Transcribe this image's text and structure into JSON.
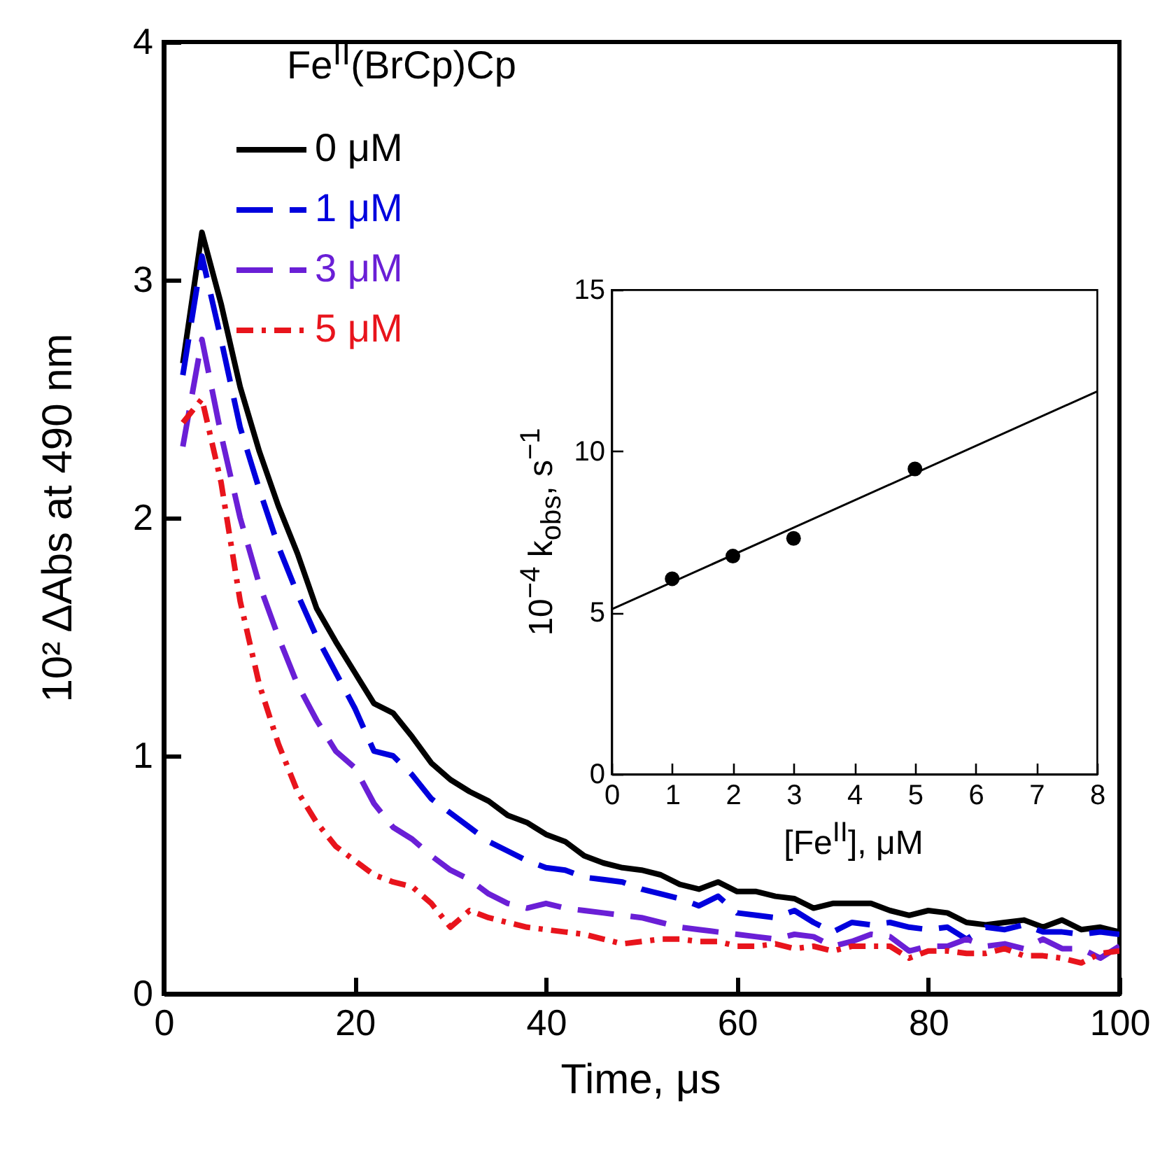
{
  "chart_data": [
    {
      "type": "line",
      "xlabel": "Time, μs",
      "ylabel": "10² ΔAbs at 490 nm",
      "legend_title": "Fe$^{II}$(BrCp)Cp",
      "legend": "top left",
      "x": [
        2,
        4,
        6,
        8,
        10,
        12,
        14,
        16,
        18,
        20,
        22,
        24,
        26,
        28,
        30,
        32,
        34,
        36,
        38,
        40,
        42,
        44,
        46,
        48,
        50,
        52,
        54,
        56,
        58,
        60,
        62,
        64,
        66,
        68,
        70,
        72,
        74,
        76,
        78,
        80,
        82,
        84,
        86,
        88,
        90,
        92,
        94,
        96,
        98,
        100
      ],
      "series": [
        {
          "name": "0 μM",
          "color": "#000000",
          "line_style": "solid",
          "values": [
            2.65,
            3.2,
            2.9,
            2.55,
            2.28,
            2.05,
            1.85,
            1.62,
            1.48,
            1.35,
            1.22,
            1.18,
            1.08,
            0.97,
            0.9,
            0.85,
            0.81,
            0.75,
            0.72,
            0.67,
            0.64,
            0.58,
            0.55,
            0.53,
            0.52,
            0.5,
            0.46,
            0.44,
            0.47,
            0.43,
            0.43,
            0.41,
            0.4,
            0.36,
            0.38,
            0.38,
            0.38,
            0.35,
            0.33,
            0.35,
            0.34,
            0.3,
            0.29,
            0.3,
            0.31,
            0.28,
            0.31,
            0.27,
            0.28,
            0.26
          ]
        },
        {
          "name": "1 μM",
          "color": "#0000dd",
          "line_style": "dashed",
          "values": [
            2.6,
            3.1,
            2.75,
            2.38,
            2.12,
            1.88,
            1.68,
            1.5,
            1.35,
            1.2,
            1.02,
            1.0,
            0.92,
            0.82,
            0.76,
            0.7,
            0.64,
            0.6,
            0.56,
            0.53,
            0.52,
            0.49,
            0.48,
            0.47,
            0.44,
            0.42,
            0.4,
            0.37,
            0.41,
            0.34,
            0.33,
            0.32,
            0.35,
            0.3,
            0.26,
            0.3,
            0.29,
            0.3,
            0.28,
            0.27,
            0.28,
            0.23,
            0.28,
            0.27,
            0.29,
            0.26,
            0.26,
            0.25,
            0.26,
            0.25
          ]
        },
        {
          "name": "3 μM",
          "color": "#6a1fd6",
          "line_style": "dashed",
          "values": [
            2.3,
            2.75,
            2.35,
            2.0,
            1.72,
            1.5,
            1.3,
            1.15,
            1.02,
            0.95,
            0.8,
            0.7,
            0.65,
            0.58,
            0.52,
            0.48,
            0.42,
            0.38,
            0.36,
            0.38,
            0.36,
            0.35,
            0.34,
            0.33,
            0.32,
            0.3,
            0.28,
            0.27,
            0.26,
            0.25,
            0.24,
            0.23,
            0.25,
            0.24,
            0.2,
            0.22,
            0.25,
            0.24,
            0.18,
            0.2,
            0.2,
            0.23,
            0.2,
            0.21,
            0.19,
            0.23,
            0.19,
            0.19,
            0.15,
            0.2
          ]
        },
        {
          "name": "5 μM",
          "color": "#e8141c",
          "line_style": "dotted",
          "values": [
            2.4,
            2.5,
            2.15,
            1.65,
            1.3,
            1.05,
            0.85,
            0.72,
            0.62,
            0.56,
            0.5,
            0.47,
            0.45,
            0.38,
            0.28,
            0.35,
            0.32,
            0.3,
            0.28,
            0.27,
            0.26,
            0.25,
            0.23,
            0.21,
            0.22,
            0.23,
            0.23,
            0.22,
            0.22,
            0.2,
            0.2,
            0.21,
            0.19,
            0.2,
            0.18,
            0.2,
            0.2,
            0.2,
            0.15,
            0.18,
            0.18,
            0.17,
            0.17,
            0.19,
            0.16,
            0.16,
            0.15,
            0.13,
            0.17,
            0.18
          ]
        }
      ],
      "xlim": [
        0,
        100
      ],
      "ylim": [
        0,
        4
      ],
      "xticks": [
        0,
        20,
        40,
        60,
        80,
        100
      ],
      "yticks": [
        0,
        1,
        2,
        3,
        4
      ]
    },
    {
      "type": "scatter",
      "xlabel": "[Fe$^{II}$], μM",
      "ylabel": "10$^{−4}$ k$_{obs}$, s$^{−1}$",
      "x": [
        1,
        2,
        3,
        5
      ],
      "series": [
        {
          "color": "#000000",
          "marker": "circle",
          "values": [
            6.05,
            6.75,
            7.3,
            9.45
          ]
        },
        {
          "type": "line",
          "color": "#000000",
          "x": [
            0,
            8
          ],
          "values": [
            5.1,
            11.85
          ]
        }
      ],
      "xlim": [
        0,
        8
      ],
      "ylim": [
        0,
        15
      ],
      "xticks": [
        0,
        1,
        2,
        3,
        4,
        5,
        6,
        7,
        8
      ],
      "yticks": [
        0,
        5,
        10,
        15
      ]
    }
  ]
}
